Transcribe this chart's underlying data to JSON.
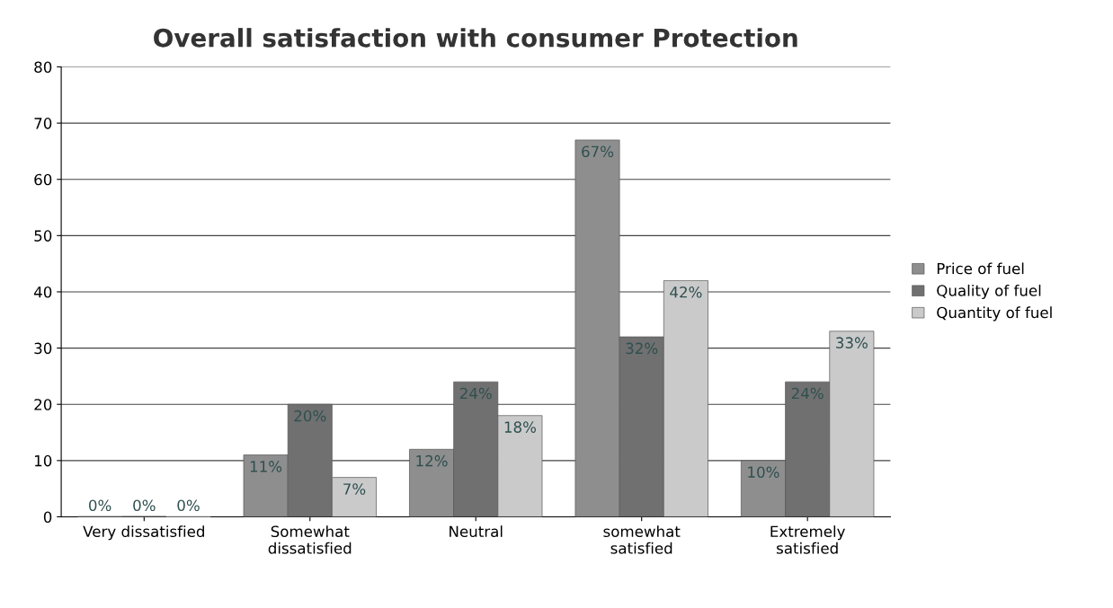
{
  "chart_data": {
    "type": "bar",
    "title": "Overall satisfaction with consumer Protection",
    "categories": [
      "Very dissatisfied",
      "Somewhat\ndissatisfied",
      "Neutral",
      "somewhat\nsatisfied",
      "Extremely\nsatisfied"
    ],
    "series": [
      {
        "name": "Price of fuel",
        "color": "#8e8e8e",
        "values": [
          0,
          11,
          12,
          67,
          10
        ],
        "value_labels": [
          "0%",
          "11%",
          "12%",
          "67%",
          "10%"
        ]
      },
      {
        "name": "Quality of fuel",
        "color": "#707070",
        "values": [
          0,
          20,
          24,
          32,
          24
        ],
        "value_labels": [
          "0%",
          "20%",
          "24%",
          "32%",
          "24%"
        ]
      },
      {
        "name": "Quantity of fuel",
        "color": "#cacaca",
        "values": [
          0,
          7,
          18,
          42,
          33
        ],
        "value_labels": [
          "0%",
          "7%",
          "18%",
          "42%",
          "33%"
        ]
      }
    ],
    "ylim": [
      0,
      80
    ],
    "yticks": [
      0,
      10,
      20,
      30,
      40,
      50,
      60,
      70,
      80
    ],
    "grid": "y",
    "legend": "right"
  }
}
